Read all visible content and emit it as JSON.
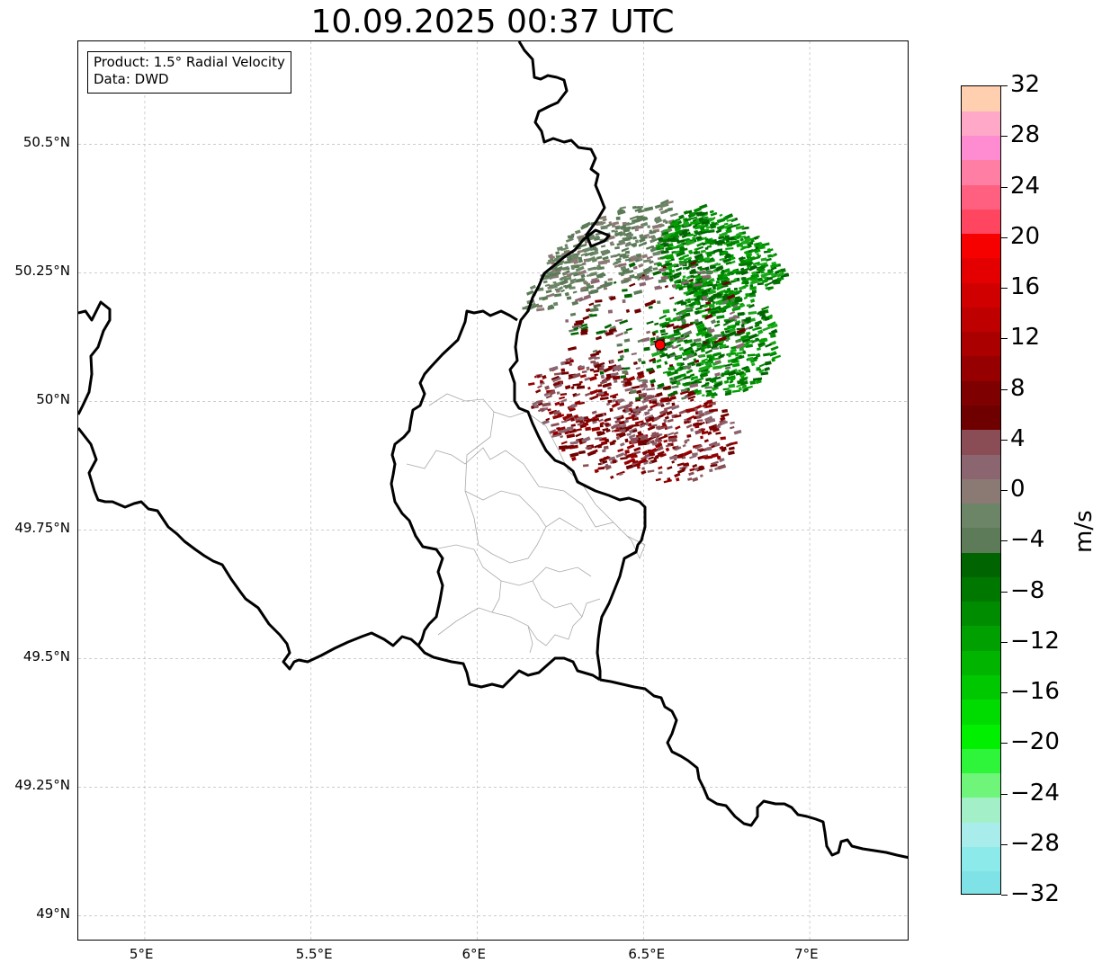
{
  "title": "10.09.2025 00:37 UTC",
  "info_box": {
    "product": "Product: 1.5° Radial Velocity",
    "data": "Data: DWD"
  },
  "map": {
    "lon_range": [
      4.8,
      7.3
    ],
    "lat_range": [
      48.95,
      50.7
    ],
    "lat_ticks": [
      {
        "value": 50.5,
        "label": "50.5°N"
      },
      {
        "value": 50.25,
        "label": "50.25°N"
      },
      {
        "value": 50.0,
        "label": "50°N"
      },
      {
        "value": 49.75,
        "label": "49.75°N"
      },
      {
        "value": 49.5,
        "label": "49.5°N"
      },
      {
        "value": 49.25,
        "label": "49.25°N"
      },
      {
        "value": 49.0,
        "label": "49°N"
      }
    ],
    "lon_ticks": [
      {
        "value": 5.0,
        "label": "5°E"
      },
      {
        "value": 5.5,
        "label": "5.5°E"
      },
      {
        "value": 6.0,
        "label": "6°E"
      },
      {
        "value": 6.5,
        "label": "6.5°E"
      },
      {
        "value": 7.0,
        "label": "7°E"
      }
    ],
    "radar_site": {
      "lon": 6.55,
      "lat": 50.11,
      "color": "#ff0000"
    },
    "grid_color": "#bbbbbb",
    "border_color": "#000000",
    "admin_color": "#aaaaaa"
  },
  "colorbar": {
    "label": "m/s",
    "min": -32,
    "max": 32,
    "ticks": [
      {
        "value": 32,
        "label": "32"
      },
      {
        "value": 28,
        "label": "28"
      },
      {
        "value": 24,
        "label": "24"
      },
      {
        "value": 20,
        "label": "20"
      },
      {
        "value": 16,
        "label": "16"
      },
      {
        "value": 12,
        "label": "12"
      },
      {
        "value": 8,
        "label": "8"
      },
      {
        "value": 4,
        "label": "4"
      },
      {
        "value": 0,
        "label": "0"
      },
      {
        "value": -4,
        "label": "−4"
      },
      {
        "value": -8,
        "label": "−8"
      },
      {
        "value": -12,
        "label": "−12"
      },
      {
        "value": -16,
        "label": "−16"
      },
      {
        "value": -20,
        "label": "−20"
      },
      {
        "value": -24,
        "label": "−24"
      },
      {
        "value": -28,
        "label": "−28"
      },
      {
        "value": -32,
        "label": "−32"
      }
    ],
    "colors": [
      "#7ee2e6",
      "#8deaea",
      "#a8ecec",
      "#a3f0c8",
      "#6ef57a",
      "#2ef53a",
      "#00f000",
      "#00dc00",
      "#00c800",
      "#00b400",
      "#00a000",
      "#008c00",
      "#007800",
      "#006400",
      "#5e7b59",
      "#6b8566",
      "#8b7a73",
      "#8b6570",
      "#8a4d55",
      "#6e0000",
      "#7f0000",
      "#960000",
      "#ab0000",
      "#be0000",
      "#d10000",
      "#e40000",
      "#f70000",
      "#ff4560",
      "#ff6080",
      "#ff7fa4",
      "#ff8cd0",
      "#ffa8c8",
      "#ffcfb0"
    ]
  }
}
